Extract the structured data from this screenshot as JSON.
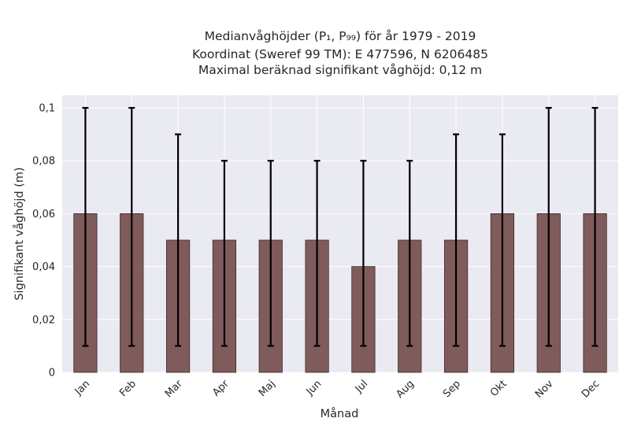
{
  "chart_data": {
    "type": "bar",
    "title_lines": [
      "Medianvåghöjder (P₁, P₉₉) för år 1979 - 2019",
      "Koordinat (Sweref 99 TM): E 477596, N 6206485",
      "Maximal beräknad signifikant våghöjd: 0,12 m"
    ],
    "xlabel": "Månad",
    "ylabel": "Signifikant våghöjd (m)",
    "categories": [
      "Jan",
      "Feb",
      "Mar",
      "Apr",
      "Maj",
      "Jun",
      "Jul",
      "Aug",
      "Sep",
      "Okt",
      "Nov",
      "Dec"
    ],
    "values": [
      0.06,
      0.06,
      0.05,
      0.05,
      0.05,
      0.05,
      0.04,
      0.05,
      0.05,
      0.06,
      0.06,
      0.06
    ],
    "error_low": [
      0.01,
      0.01,
      0.01,
      0.01,
      0.01,
      0.01,
      0.01,
      0.01,
      0.01,
      0.01,
      0.01,
      0.01
    ],
    "error_high": [
      0.1,
      0.1,
      0.09,
      0.08,
      0.08,
      0.08,
      0.08,
      0.08,
      0.09,
      0.09,
      0.1,
      0.1
    ],
    "ylim": [
      0,
      0.1
    ],
    "yticks": [
      0,
      0.02,
      0.04,
      0.06,
      0.08,
      0.1
    ],
    "ytick_labels": [
      "0",
      "0,02",
      "0,04",
      "0,06",
      "0,08",
      "0,1"
    ],
    "grid": true,
    "colors": {
      "bar": "#7f5b5b",
      "bar_edge": "#3d2b2b",
      "error": "#000000",
      "background": "#eaeaf2",
      "grid": "#ffffff"
    }
  }
}
